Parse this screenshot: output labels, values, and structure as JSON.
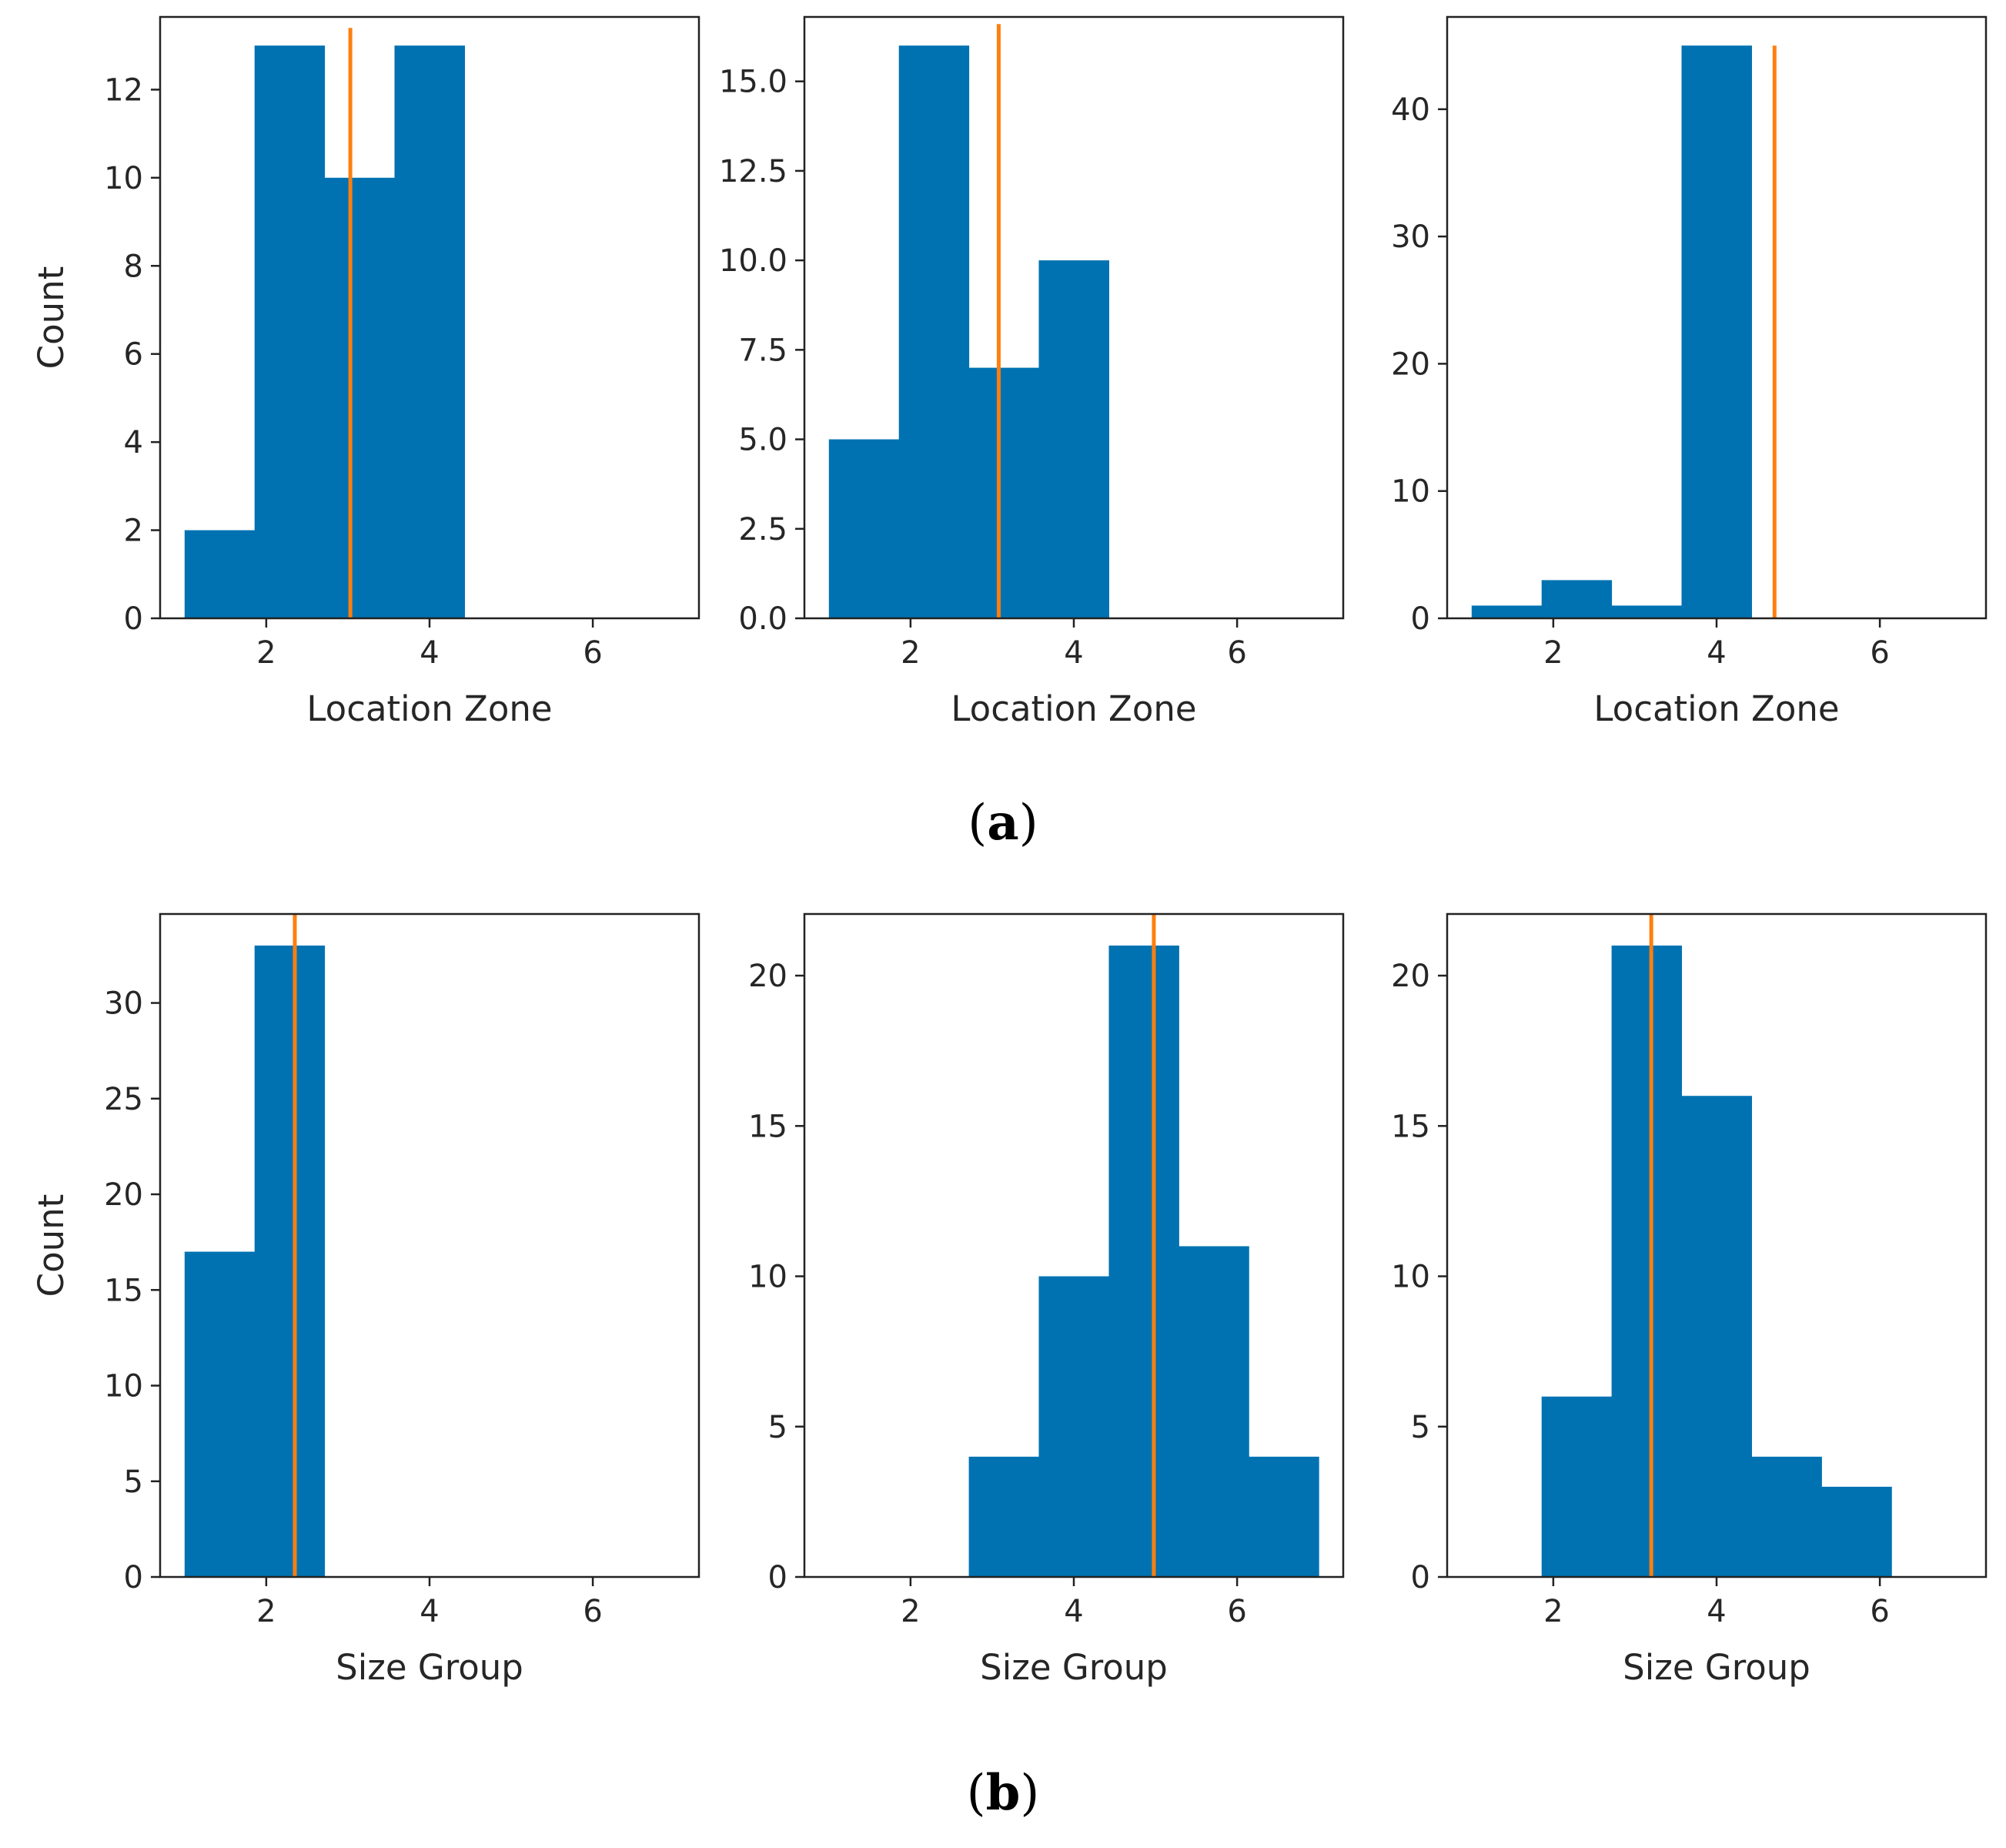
{
  "colors": {
    "bar": "#0072b2",
    "mean_line": "#ff7f0e",
    "frame": "#222222"
  },
  "panels": [
    {
      "label": "(",
      "letter": "a",
      "close": ")"
    },
    {
      "label": "(",
      "letter": "b",
      "close": ")"
    }
  ],
  "chart_data": [
    {
      "type": "bar",
      "row": "a",
      "col": 1,
      "xlabel": "Location Zone",
      "ylabel": "Count",
      "xlim": [
        0.7,
        7.3
      ],
      "ylim": [
        0,
        13.65
      ],
      "xticks": [
        2,
        4,
        6
      ],
      "xtick_labels": [
        "2",
        "4",
        "6"
      ],
      "yticks": [
        0,
        2,
        4,
        6,
        8,
        10,
        12
      ],
      "ytick_labels": [
        "0",
        "2",
        "4",
        "6",
        "8",
        "10",
        "12"
      ],
      "bin_edges": [
        1.0,
        1.857,
        2.714,
        3.571,
        4.429
      ],
      "values": [
        2,
        13,
        10,
        13
      ],
      "mean_line": {
        "x": 3.03,
        "y_top": 13.4
      }
    },
    {
      "type": "bar",
      "row": "a",
      "col": 2,
      "xlabel": "Location Zone",
      "ylabel": "",
      "xlim": [
        0.7,
        7.3
      ],
      "ylim": [
        0,
        16.8
      ],
      "xticks": [
        2,
        4,
        6
      ],
      "xtick_labels": [
        "2",
        "4",
        "6"
      ],
      "yticks": [
        0,
        2.5,
        5,
        7.5,
        10,
        12.5,
        15
      ],
      "ytick_labels": [
        "0.0",
        "2.5",
        "5.0",
        "7.5",
        "10.0",
        "12.5",
        "15.0"
      ],
      "bin_edges": [
        1.0,
        1.857,
        2.714,
        3.571,
        4.429
      ],
      "values": [
        5,
        16,
        7,
        10
      ],
      "mean_line": {
        "x": 3.08,
        "y_top": 16.6
      }
    },
    {
      "type": "bar",
      "row": "a",
      "col": 3,
      "xlabel": "Location Zone",
      "ylabel": "",
      "xlim": [
        0.7,
        7.3
      ],
      "ylim": [
        0,
        47.25
      ],
      "xticks": [
        2,
        4,
        6
      ],
      "xtick_labels": [
        "2",
        "4",
        "6"
      ],
      "yticks": [
        0,
        10,
        20,
        30,
        40
      ],
      "ytick_labels": [
        "0",
        "10",
        "20",
        "30",
        "40"
      ],
      "bin_edges": [
        1.0,
        1.857,
        2.714,
        3.571,
        4.429
      ],
      "values": [
        1,
        3,
        1,
        45
      ],
      "mean_line": {
        "x": 4.71,
        "y_top": 45
      }
    },
    {
      "type": "bar",
      "row": "b",
      "col": 1,
      "xlabel": "Size Group",
      "ylabel": "Count",
      "xlim": [
        0.7,
        7.3
      ],
      "ylim": [
        0,
        34.65
      ],
      "xticks": [
        2,
        4,
        6
      ],
      "xtick_labels": [
        "2",
        "4",
        "6"
      ],
      "yticks": [
        0,
        5,
        10,
        15,
        20,
        25,
        30
      ],
      "ytick_labels": [
        "0",
        "5",
        "10",
        "15",
        "20",
        "25",
        "30"
      ],
      "bin_edges": [
        1.0,
        1.857,
        2.714
      ],
      "values": [
        17,
        33
      ],
      "mean_line": {
        "x": 2.35,
        "y_top": 34.65
      }
    },
    {
      "type": "bar",
      "row": "b",
      "col": 2,
      "xlabel": "Size Group",
      "ylabel": "",
      "xlim": [
        0.7,
        7.3
      ],
      "ylim": [
        0,
        22.05
      ],
      "xticks": [
        2,
        4,
        6
      ],
      "xtick_labels": [
        "2",
        "4",
        "6"
      ],
      "yticks": [
        0,
        5,
        10,
        15,
        20
      ],
      "ytick_labels": [
        "0",
        "5",
        "10",
        "15",
        "20"
      ],
      "bin_edges": [
        2.714,
        3.571,
        4.429,
        5.286,
        6.143,
        7.0
      ],
      "values": [
        4,
        10,
        21,
        11,
        4
      ],
      "mean_line": {
        "x": 4.98,
        "y_top": 22.05
      }
    },
    {
      "type": "bar",
      "row": "b",
      "col": 3,
      "xlabel": "Size Group",
      "ylabel": "",
      "xlim": [
        0.7,
        7.3
      ],
      "ylim": [
        0,
        22.05
      ],
      "xticks": [
        2,
        4,
        6
      ],
      "xtick_labels": [
        "2",
        "4",
        "6"
      ],
      "yticks": [
        0,
        5,
        10,
        15,
        20
      ],
      "ytick_labels": [
        "0",
        "5",
        "10",
        "15",
        "20"
      ],
      "bin_edges": [
        1.857,
        2.714,
        3.571,
        4.429,
        5.286,
        6.143
      ],
      "values": [
        6,
        21,
        16,
        4,
        3
      ],
      "mean_line": {
        "x": 3.2,
        "y_top": 22.05
      }
    }
  ]
}
